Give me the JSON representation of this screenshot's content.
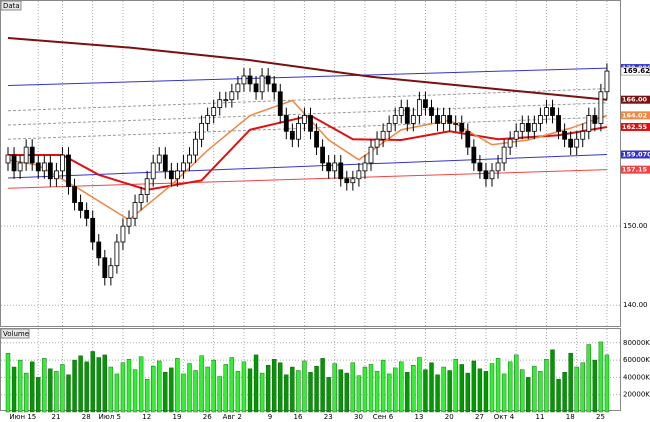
{
  "chart_data": [
    {
      "type": "candlestick",
      "title": "Data",
      "categories": [
        null,
        null,
        null,
        null,
        null,
        "Июн 15",
        null,
        null,
        null,
        "21",
        null,
        null,
        null,
        null,
        "28",
        null,
        null,
        null,
        null,
        "Июл 5",
        null,
        null,
        null,
        null,
        "12",
        null,
        null,
        null,
        null,
        "19",
        null,
        null,
        null,
        null,
        "26",
        null,
        null,
        null,
        null,
        "Авг 2",
        null,
        null,
        null,
        null,
        "9",
        null,
        null,
        null,
        null,
        "16",
        null,
        null,
        null,
        null,
        "23",
        null,
        null,
        null,
        null,
        "30",
        null,
        null,
        null,
        null,
        "Сен 6",
        null,
        null,
        null,
        null,
        "13",
        null,
        null,
        null,
        null,
        "20",
        null,
        null,
        null,
        null,
        "27",
        null,
        null,
        null,
        null,
        "Окт 4",
        null,
        null,
        null,
        null,
        "11",
        null,
        null,
        null,
        null,
        "18",
        null,
        null,
        null,
        null,
        "25"
      ],
      "open": [
        158,
        159,
        157,
        158,
        160,
        158,
        157,
        158,
        156,
        157,
        159,
        155,
        153,
        152,
        151,
        148,
        146,
        143.5,
        145,
        148,
        150,
        151,
        153,
        154,
        156,
        158,
        159,
        157,
        156,
        157,
        158,
        159,
        161,
        163,
        164,
        165,
        166,
        166,
        167,
        168,
        169,
        168,
        167,
        169,
        168,
        167,
        164,
        162,
        161,
        163,
        164,
        162,
        160,
        158,
        157,
        158,
        156,
        155.5,
        156,
        157,
        158,
        160,
        161,
        162,
        163,
        164,
        165,
        163,
        164,
        166,
        165,
        164,
        163,
        164,
        163,
        163,
        162,
        160,
        158,
        157,
        156,
        157,
        158,
        160,
        161,
        162,
        163,
        162,
        163,
        164,
        165,
        164,
        162,
        161,
        160,
        161,
        162,
        164,
        163,
        167
      ],
      "high": [
        160,
        160,
        159,
        161,
        161,
        159,
        159,
        159,
        158,
        160,
        160,
        156,
        154,
        153,
        152,
        149,
        147,
        146,
        149,
        151,
        152,
        154,
        155,
        157,
        159,
        160,
        160,
        158,
        158,
        159,
        160,
        162,
        164,
        165,
        166,
        167,
        167,
        168,
        169,
        170,
        170,
        169,
        170,
        170,
        169,
        168,
        165,
        163,
        164,
        165,
        165,
        163,
        161,
        159,
        159,
        159,
        157,
        157,
        158,
        159,
        161,
        162,
        163,
        164,
        165,
        166,
        166,
        165,
        167,
        167,
        166,
        165,
        165,
        165,
        164,
        164,
        163,
        161,
        159,
        158,
        158,
        159,
        161,
        162,
        163,
        164,
        164,
        164,
        165,
        166,
        166,
        165,
        163,
        162,
        162,
        163,
        165,
        165,
        168,
        170.6
      ],
      "low": [
        157,
        156,
        156,
        157,
        157,
        156,
        156,
        155,
        155,
        156,
        154,
        152,
        151,
        150,
        147,
        145,
        142.5,
        142.5,
        144,
        147,
        149,
        150,
        152,
        153,
        155,
        157,
        156,
        155,
        155,
        156,
        157,
        158,
        160,
        162,
        163,
        164,
        165,
        165,
        166,
        167,
        167,
        166,
        166,
        167,
        166,
        163,
        161,
        160,
        160,
        162,
        161,
        159,
        157,
        156,
        156,
        155,
        154.5,
        154.5,
        155,
        156,
        157,
        159,
        160,
        161,
        162,
        163,
        162,
        162,
        163,
        164,
        163,
        162,
        162,
        162,
        162,
        161,
        159,
        157,
        156,
        155,
        155,
        156,
        157,
        159,
        160,
        161,
        161,
        161,
        162,
        163,
        163,
        161,
        160,
        159,
        159,
        160,
        161,
        162,
        162,
        166
      ],
      "close": [
        159,
        157,
        158,
        160,
        158,
        157,
        158,
        156,
        157,
        159,
        155,
        153,
        152,
        151,
        148,
        146,
        143.5,
        145,
        148,
        150,
        151,
        153,
        154,
        156,
        158,
        159,
        157,
        156,
        157,
        158,
        159,
        161,
        163,
        164,
        165,
        166,
        166,
        167,
        168,
        169,
        168,
        167,
        169,
        168,
        167,
        164,
        162,
        161,
        163,
        164,
        162,
        160,
        158,
        157,
        158,
        156,
        155.5,
        156,
        157,
        158,
        160,
        161,
        162,
        163,
        164,
        165,
        163,
        164,
        166,
        165,
        164,
        163,
        164,
        163,
        163,
        162,
        160,
        158,
        157,
        156,
        157,
        158,
        160,
        161,
        162,
        163,
        162,
        163,
        164,
        165,
        164,
        162,
        161,
        160,
        161,
        162,
        164,
        163,
        167,
        169.62
      ],
      "close_label": "169.62",
      "up_color": "#ffffff",
      "down_color": "#000000",
      "ylim": [
        137.5,
        177.6
      ],
      "yticks": [
        {
          "value": 140,
          "label": "140.00"
        },
        {
          "value": 150,
          "label": "150.00"
        }
      ],
      "grid": true,
      "overlays": [
        {
          "color": "#3333cc",
          "x": [
            0,
            99
          ],
          "values": [
            167.8,
            170.0
          ],
          "value_label": "170.0000"
        },
        {
          "color": "#999999",
          "dash": true,
          "x": [
            0,
            99
          ],
          "values": [
            164.6,
            167.4
          ]
        },
        {
          "color": "#999999",
          "dash": true,
          "x": [
            0,
            99
          ],
          "values": [
            162.8,
            165.6
          ]
        },
        {
          "color": "#999999",
          "dash": true,
          "x": [
            0,
            99
          ],
          "values": [
            161.0,
            163.8
          ]
        },
        {
          "color": "#3333cc",
          "x": [
            0,
            99
          ],
          "values": [
            156.1,
            159.07
          ],
          "value_label": "159.0700"
        },
        {
          "color": "#ee4444",
          "x": [
            0,
            99
          ],
          "values": [
            154.8,
            157.15
          ],
          "value_label": "157.15"
        },
        {
          "color": "#7a1010",
          "width": 2,
          "x": [
            0,
            20,
            40,
            60,
            80,
            99
          ],
          "values": [
            173.8,
            172.6,
            171.0,
            168.9,
            167.4,
            166.0
          ],
          "value_label": "166.00"
        },
        {
          "color": "#dd1111",
          "width": 2,
          "x": [
            0,
            9,
            15,
            23,
            32,
            40,
            50,
            57,
            65,
            73,
            81,
            91,
            99
          ],
          "values": [
            159,
            159,
            156.5,
            154.6,
            155.8,
            162.2,
            164,
            161,
            160.9,
            162,
            161,
            161.5,
            162.55
          ],
          "value_label": "162.55"
        },
        {
          "color": "#ee8844",
          "width": 1.5,
          "x": [
            0,
            5,
            12,
            20,
            27,
            33,
            40,
            47,
            53,
            58,
            65,
            73,
            80,
            86,
            93,
            99
          ],
          "values": [
            158.4,
            157.7,
            154.6,
            150.8,
            155.2,
            159.6,
            164,
            165.9,
            160.9,
            158.4,
            162.2,
            163.4,
            160.3,
            160.9,
            162.4,
            164.02
          ],
          "value_label": "164.02"
        }
      ]
    },
    {
      "type": "bar",
      "title": "Volume",
      "values": [
        68000,
        52000,
        60000,
        45000,
        58000,
        40000,
        62000,
        50000,
        47000,
        55000,
        43000,
        60000,
        65000,
        58000,
        70000,
        63000,
        66000,
        52000,
        44000,
        57000,
        61000,
        49000,
        64000,
        38000,
        53000,
        59000,
        46000,
        51000,
        62000,
        44000,
        56000,
        48000,
        65000,
        52000,
        60000,
        41000,
        55000,
        63000,
        47000,
        58000,
        50000,
        66000,
        45000,
        54000,
        61000,
        57000,
        43000,
        52000,
        48000,
        59000,
        46000,
        53000,
        62000,
        40000,
        56000,
        49000,
        45000,
        57000,
        42000,
        52000,
        55000,
        47000,
        60000,
        44000,
        51000,
        58000,
        46000,
        54000,
        63000,
        49000,
        57000,
        43000,
        52000,
        48000,
        61000,
        55000,
        45000,
        59000,
        50000,
        47000,
        56000,
        62000,
        44000,
        58000,
        66000,
        49000,
        40000,
        53000,
        47000,
        61000,
        72000,
        38000,
        46000,
        68000,
        52000,
        57000,
        78000,
        60000,
        81000,
        66000
      ],
      "up_color": "#33ee33",
      "down_color": "#009900",
      "ylim": [
        0,
        89000
      ],
      "yticks": [
        {
          "value": 20000,
          "label": "20000K"
        },
        {
          "value": 40000,
          "label": "40000K"
        },
        {
          "value": 60000,
          "label": "60000K"
        },
        {
          "value": 80000,
          "label": "80000K"
        }
      ]
    }
  ]
}
